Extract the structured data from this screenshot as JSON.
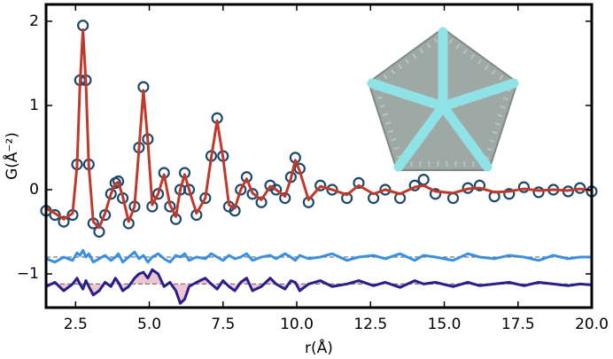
{
  "chart_data": {
    "type": "line",
    "xlabel": "r(Å)",
    "ylabel": "G(Å⁻²)",
    "xlim": [
      1.5,
      20
    ],
    "ylim": [
      -1.4,
      2.2
    ],
    "xticks": [
      2.5,
      {
        "value": 5,
        "label": "5.0"
      },
      7.5,
      {
        "value": 10,
        "label": "10.0"
      },
      12.5,
      {
        "value": 15,
        "label": "15.0"
      },
      17.5,
      {
        "value": 20,
        "label": "20.0"
      }
    ],
    "yticks": [
      {
        "value": -1,
        "label": "−1"
      },
      0,
      1,
      2
    ],
    "x": [
      1.5,
      1.8,
      2.1,
      2.4,
      2.55,
      2.65,
      2.75,
      2.85,
      2.95,
      3.1,
      3.3,
      3.5,
      3.7,
      3.85,
      3.95,
      4.1,
      4.3,
      4.5,
      4.65,
      4.8,
      4.95,
      5.1,
      5.3,
      5.5,
      5.7,
      5.9,
      6.05,
      6.2,
      6.35,
      6.6,
      6.9,
      7.1,
      7.3,
      7.5,
      7.7,
      7.9,
      8.1,
      8.3,
      8.5,
      8.8,
      9.1,
      9.3,
      9.6,
      9.8,
      9.95,
      10.1,
      10.4,
      10.8,
      11.2,
      11.7,
      12.1,
      12.6,
      13.0,
      13.5,
      14.0,
      14.3,
      14.7,
      15.3,
      15.8,
      16.2,
      16.7,
      17.2,
      17.7,
      18.2,
      18.7,
      19.2,
      19.6,
      20.0
    ],
    "series": [
      {
        "kind": "markers",
        "color": "#1d4a6b",
        "values": [
          -0.25,
          -0.3,
          -0.38,
          -0.3,
          0.3,
          1.3,
          1.95,
          1.3,
          0.3,
          -0.4,
          -0.5,
          -0.3,
          -0.05,
          0.08,
          0.1,
          -0.1,
          -0.4,
          -0.2,
          0.5,
          1.22,
          0.6,
          -0.2,
          -0.05,
          0.2,
          -0.2,
          -0.35,
          0.0,
          0.2,
          0.0,
          -0.3,
          -0.1,
          0.4,
          0.85,
          0.4,
          -0.2,
          -0.25,
          0.0,
          0.15,
          -0.05,
          -0.15,
          0.05,
          0.0,
          -0.1,
          0.15,
          0.38,
          0.25,
          -0.15,
          0.05,
          0.0,
          -0.1,
          0.08,
          -0.1,
          0.0,
          -0.1,
          0.05,
          0.12,
          -0.05,
          -0.1,
          0.02,
          0.05,
          -0.08,
          -0.05,
          0.03,
          -0.03,
          0.0,
          -0.02,
          0.02,
          -0.02
        ]
      },
      {
        "kind": "line",
        "color": "#c0392b",
        "values": [
          -0.22,
          -0.28,
          -0.35,
          -0.28,
          0.28,
          1.25,
          1.9,
          1.28,
          0.28,
          -0.38,
          -0.45,
          -0.28,
          -0.05,
          0.07,
          0.09,
          -0.08,
          -0.38,
          -0.2,
          0.48,
          1.18,
          0.58,
          -0.18,
          -0.05,
          0.18,
          -0.18,
          -0.32,
          0.0,
          0.18,
          0.0,
          -0.28,
          -0.1,
          0.38,
          0.82,
          0.38,
          -0.18,
          -0.22,
          0.0,
          0.13,
          -0.04,
          -0.12,
          0.04,
          0.0,
          -0.08,
          0.13,
          0.35,
          0.22,
          -0.12,
          0.04,
          0.0,
          -0.06,
          0.05,
          -0.05,
          0.0,
          -0.05,
          0.03,
          0.05,
          -0.02,
          -0.04,
          0.01,
          0.02,
          -0.03,
          -0.02,
          0.01,
          -0.01,
          0.0,
          -0.01,
          0.01,
          -0.01
        ]
      },
      {
        "kind": "line",
        "color": "#3b8fe0",
        "baseline": -0.8,
        "values": [
          -0.82,
          -0.86,
          -0.8,
          -0.84,
          -0.75,
          -0.78,
          -0.72,
          -0.8,
          -0.76,
          -0.86,
          -0.82,
          -0.78,
          -0.84,
          -0.8,
          -0.76,
          -0.86,
          -0.8,
          -0.74,
          -0.82,
          -0.78,
          -0.86,
          -0.8,
          -0.76,
          -0.82,
          -0.86,
          -0.78,
          -0.8,
          -0.76,
          -0.84,
          -0.8,
          -0.82,
          -0.76,
          -0.8,
          -0.84,
          -0.78,
          -0.82,
          -0.8,
          -0.76,
          -0.84,
          -0.8,
          -0.78,
          -0.82,
          -0.76,
          -0.8,
          -0.84,
          -0.78,
          -0.82,
          -0.8,
          -0.76,
          -0.84,
          -0.8,
          -0.78,
          -0.82,
          -0.76,
          -0.84,
          -0.78,
          -0.8,
          -0.84,
          -0.76,
          -0.8,
          -0.82,
          -0.78,
          -0.8,
          -0.84,
          -0.78,
          -0.82,
          -0.8,
          -0.8
        ]
      },
      {
        "kind": "line",
        "color": "#2a1f8a",
        "baseline": -1.12,
        "fill_color": "#e8b7c8",
        "values": [
          -1.15,
          -1.1,
          -1.2,
          -1.12,
          -1.05,
          -1.12,
          -1.18,
          -1.08,
          -1.15,
          -1.25,
          -1.2,
          -1.1,
          -1.15,
          -1.05,
          -1.1,
          -1.2,
          -1.15,
          -1.05,
          -1.0,
          -0.98,
          -1.05,
          -0.95,
          -1.0,
          -1.15,
          -1.1,
          -1.2,
          -1.35,
          -1.3,
          -1.15,
          -1.1,
          -1.05,
          -1.12,
          -1.18,
          -1.08,
          -1.15,
          -1.2,
          -1.1,
          -1.05,
          -1.2,
          -1.15,
          -1.05,
          -1.12,
          -1.18,
          -1.08,
          -1.1,
          -1.2,
          -1.12,
          -1.08,
          -1.15,
          -1.12,
          -1.08,
          -1.14,
          -1.1,
          -1.16,
          -1.08,
          -1.12,
          -1.1,
          -1.15,
          -1.1,
          -1.14,
          -1.12,
          -1.1,
          -1.14,
          -1.1,
          -1.12,
          -1.14,
          -1.12,
          -1.13
        ]
      }
    ]
  }
}
